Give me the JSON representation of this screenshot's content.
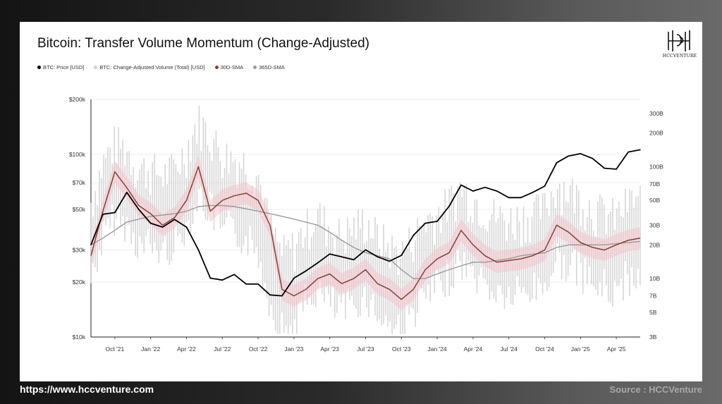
{
  "card": {
    "title": "Bitcoin: Transfer Volume Momentum (Change-Adjusted)",
    "logo_text": "HCCVENTURE"
  },
  "footer": {
    "url": "https://www.hccventure.com",
    "source": "Source : HCCVenture"
  },
  "colors": {
    "price": "#000000",
    "volume": "#cfcfcf",
    "sma30": "#8b3f35",
    "sma365": "#9a9a9a",
    "pink_band": "#f2c4cc"
  },
  "chart_data": {
    "type": "line",
    "title": "Bitcoin: Transfer Volume Momentum (Change-Adjusted)",
    "legend": [
      "BTC: Price [USD]",
      "BTC: Change-Adjusted Volume (Total) [USD]",
      "30D-SMA",
      "365D-SMA"
    ],
    "legend_position": "top-left",
    "x_ticks": [
      "Oct '21",
      "Jan '22",
      "Apr '22",
      "Jul '22",
      "Oct '22",
      "Jan '23",
      "Apr '23",
      "Jul '23",
      "Oct '23",
      "Jan '24",
      "Apr '24",
      "Jul '24",
      "Oct '24",
      "Jan '25",
      "Apr '25"
    ],
    "x_range": [
      "2021-08",
      "2025-06"
    ],
    "y_left": {
      "label": "",
      "scale": "log",
      "range": [
        10000,
        200000
      ],
      "ticks": [
        "$10k",
        "$20k",
        "$30k",
        "$50k",
        "$70k",
        "$100k",
        "$200k"
      ]
    },
    "y_right": {
      "label": "",
      "scale": "log",
      "range": [
        3,
        400
      ],
      "ticks": [
        "3B",
        "5B",
        "7B",
        "10B",
        "20B",
        "30B",
        "50B",
        "70B",
        "100B",
        "200B",
        "300B"
      ]
    },
    "series": [
      {
        "name": "BTC: Price [USD]",
        "axis": "left",
        "x": [
          "2021-08",
          "2021-09",
          "2021-10",
          "2021-11",
          "2021-12",
          "2022-01",
          "2022-02",
          "2022-03",
          "2022-04",
          "2022-05",
          "2022-06",
          "2022-07",
          "2022-08",
          "2022-09",
          "2022-10",
          "2022-11",
          "2022-12",
          "2023-01",
          "2023-02",
          "2023-03",
          "2023-04",
          "2023-05",
          "2023-06",
          "2023-07",
          "2023-08",
          "2023-09",
          "2023-10",
          "2023-11",
          "2023-12",
          "2024-01",
          "2024-02",
          "2024-03",
          "2024-04",
          "2024-05",
          "2024-06",
          "2024-07",
          "2024-08",
          "2024-09",
          "2024-10",
          "2024-11",
          "2024-12",
          "2025-01",
          "2025-02",
          "2025-03",
          "2025-04",
          "2025-05",
          "2025-06"
        ],
        "values": [
          32000,
          47000,
          48000,
          62000,
          50000,
          42000,
          40000,
          44000,
          40000,
          30000,
          21000,
          20500,
          22000,
          19500,
          19500,
          17000,
          16800,
          21000,
          23000,
          25500,
          28500,
          27500,
          26500,
          30000,
          27500,
          26000,
          28000,
          36000,
          42000,
          43000,
          52000,
          68000,
          63000,
          66000,
          63000,
          58000,
          58000,
          62000,
          67000,
          90000,
          98000,
          101000,
          95000,
          84000,
          83000,
          103000,
          106000
        ]
      },
      {
        "name": "BTC: Change-Adjusted Volume (Total) [USD]",
        "axis": "right",
        "x": [
          "2021-08",
          "2021-09",
          "2021-10",
          "2021-11",
          "2021-12",
          "2022-01",
          "2022-02",
          "2022-03",
          "2022-04",
          "2022-05",
          "2022-06",
          "2022-07",
          "2022-08",
          "2022-09",
          "2022-10",
          "2022-11",
          "2022-12",
          "2023-01",
          "2023-02",
          "2023-03",
          "2023-04",
          "2023-05",
          "2023-06",
          "2023-07",
          "2023-08",
          "2023-09",
          "2023-10",
          "2023-11",
          "2023-12",
          "2024-01",
          "2024-02",
          "2024-03",
          "2024-04",
          "2024-05",
          "2024-06",
          "2024-07",
          "2024-08",
          "2024-09",
          "2024-10",
          "2024-11",
          "2024-12",
          "2025-01",
          "2025-02",
          "2025-03",
          "2025-04",
          "2025-05",
          "2025-06"
        ],
        "values": [
          20,
          45,
          70,
          60,
          40,
          40,
          35,
          40,
          60,
          110,
          80,
          55,
          50,
          45,
          35,
          12,
          7,
          8,
          12,
          16,
          12,
          10,
          12,
          14,
          10,
          8,
          7,
          10,
          14,
          16,
          20,
          28,
          22,
          18,
          15,
          14,
          15,
          16,
          18,
          30,
          26,
          22,
          18,
          16,
          15,
          20,
          22
        ]
      },
      {
        "name": "30D-SMA",
        "axis": "right",
        "x": [
          "2021-08",
          "2021-09",
          "2021-10",
          "2021-11",
          "2021-12",
          "2022-01",
          "2022-02",
          "2022-03",
          "2022-04",
          "2022-05",
          "2022-06",
          "2022-07",
          "2022-08",
          "2022-09",
          "2022-10",
          "2022-11",
          "2022-12",
          "2023-01",
          "2023-02",
          "2023-03",
          "2023-04",
          "2023-05",
          "2023-06",
          "2023-07",
          "2023-08",
          "2023-09",
          "2023-10",
          "2023-11",
          "2023-12",
          "2024-01",
          "2024-02",
          "2024-03",
          "2024-04",
          "2024-05",
          "2024-06",
          "2024-07",
          "2024-08",
          "2024-09",
          "2024-10",
          "2024-11",
          "2024-12",
          "2025-01",
          "2025-02",
          "2025-03",
          "2025-04",
          "2025-05",
          "2025-06"
        ],
        "values": [
          16,
          40,
          90,
          65,
          45,
          38,
          30,
          35,
          50,
          100,
          40,
          50,
          55,
          58,
          50,
          30,
          8,
          7,
          8,
          10,
          11,
          9,
          10,
          12,
          9,
          8,
          6.5,
          8,
          12,
          15,
          17,
          27,
          20,
          16,
          14,
          14.5,
          15,
          16,
          18,
          30,
          26,
          21,
          19,
          18,
          20,
          22,
          23
        ]
      },
      {
        "name": "365D-SMA",
        "axis": "right",
        "x": [
          "2021-08",
          "2021-09",
          "2021-10",
          "2021-11",
          "2021-12",
          "2022-01",
          "2022-02",
          "2022-03",
          "2022-04",
          "2022-05",
          "2022-06",
          "2022-07",
          "2022-08",
          "2022-09",
          "2022-10",
          "2022-11",
          "2022-12",
          "2023-01",
          "2023-02",
          "2023-03",
          "2023-04",
          "2023-05",
          "2023-06",
          "2023-07",
          "2023-08",
          "2023-09",
          "2023-10",
          "2023-11",
          "2023-12",
          "2024-01",
          "2024-02",
          "2024-03",
          "2024-04",
          "2024-05",
          "2024-06",
          "2024-07",
          "2024-08",
          "2024-09",
          "2024-10",
          "2024-11",
          "2024-12",
          "2025-01",
          "2025-02",
          "2025-03",
          "2025-04",
          "2025-05",
          "2025-06"
        ],
        "values": [
          20,
          23,
          27,
          32,
          34,
          36,
          37,
          38,
          40,
          44,
          45,
          45,
          44,
          42,
          40,
          38,
          36,
          34,
          32,
          30,
          26,
          22,
          19,
          17,
          16,
          15,
          12,
          10,
          10,
          11,
          12,
          13,
          14,
          14,
          14.5,
          15,
          16,
          16.5,
          17,
          19,
          20,
          20,
          20,
          20,
          20.5,
          21,
          21.5
        ]
      }
    ]
  }
}
